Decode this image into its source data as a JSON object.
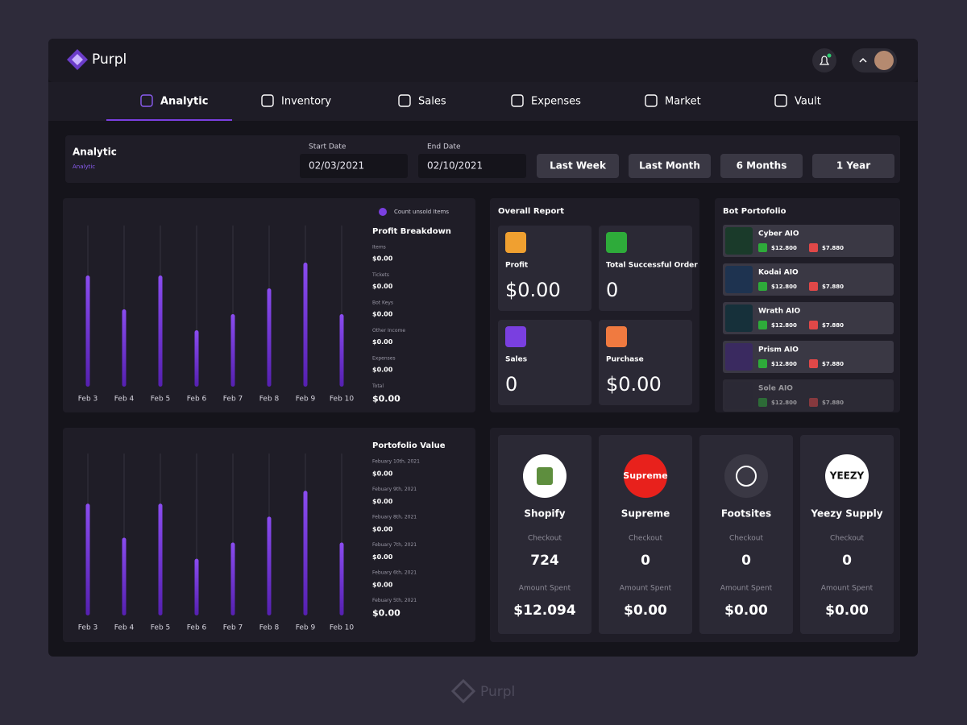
{
  "brand": "Purpl",
  "nav": [
    "Analytic",
    "Inventory",
    "Sales",
    "Expenses",
    "Market",
    "Vault"
  ],
  "filter": {
    "title": "Analytic",
    "breadcrumb": "Analytic",
    "start_label": "Start Date",
    "start_value": "02/03/2021",
    "end_label": "End Date",
    "end_value": "02/10/2021",
    "ranges": [
      "Last Week",
      "Last Month",
      "6 Months",
      "1 Year"
    ]
  },
  "profit_chart": {
    "type": "bar",
    "legend": "Count unsold Items",
    "color": "#7a3fe0",
    "categories": [
      "Feb 3",
      "Feb 4",
      "Feb 5",
      "Feb 6",
      "Feb 7",
      "Feb 8",
      "Feb 9",
      "Feb 10"
    ],
    "values": [
      69,
      48,
      69,
      35,
      45,
      61,
      77,
      45
    ],
    "ylim": [
      0,
      100
    ]
  },
  "profit_breakdown": {
    "title": "Profit Breakdown",
    "items": [
      {
        "label": "Items",
        "value": "$0.00"
      },
      {
        "label": "Tickets",
        "value": "$0.00"
      },
      {
        "label": "Bot Keys",
        "value": "$0.00"
      },
      {
        "label": "Other Income",
        "value": "$0.00"
      },
      {
        "label": "Expenses",
        "value": "$0.00"
      },
      {
        "label": "Total",
        "value": "$0.00"
      }
    ]
  },
  "overall_report": {
    "title": "Overall Report",
    "cards": [
      {
        "label": "Profit",
        "value": "$0.00"
      },
      {
        "label": "Total Successful Order",
        "value": "0"
      },
      {
        "label": "Sales",
        "value": "0"
      },
      {
        "label": "Purchase",
        "value": "$0.00"
      }
    ]
  },
  "bot_portfolio": {
    "title": "Bot Portofolio",
    "bots": [
      {
        "name": "Cyber AIO",
        "price_a": "$12.800",
        "price_b": "$7.880"
      },
      {
        "name": "Kodai AIO",
        "price_a": "$12.800",
        "price_b": "$7.880"
      },
      {
        "name": "Wrath AIO",
        "price_a": "$12.800",
        "price_b": "$7.880"
      },
      {
        "name": "Prism AIO",
        "price_a": "$12.800",
        "price_b": "$7.880"
      },
      {
        "name": "Sole AIO",
        "price_a": "$12.800",
        "price_b": "$7.880"
      }
    ]
  },
  "portfolio_chart": {
    "type": "bar",
    "color": "#7a3fe0",
    "categories": [
      "Feb 3",
      "Feb 4",
      "Feb 5",
      "Feb 6",
      "Feb 7",
      "Feb 8",
      "Feb 9",
      "Feb 10"
    ],
    "values": [
      69,
      48,
      69,
      35,
      45,
      61,
      77,
      45
    ],
    "ylim": [
      0,
      100
    ]
  },
  "portfolio_value": {
    "title": "Portofolio Value",
    "entries": [
      {
        "date": "Febuary 10th, 2021",
        "value": "$0.00"
      },
      {
        "date": "Febuary 9th, 2021",
        "value": "$0.00"
      },
      {
        "date": "Febuary 8th, 2021",
        "value": "$0.00"
      },
      {
        "date": "Febuary 7th, 2021",
        "value": "$0.00"
      },
      {
        "date": "Febuary 6th, 2021",
        "value": "$0.00"
      },
      {
        "date": "Febuary 5th, 2021",
        "value": "$0.00"
      }
    ]
  },
  "stores": [
    {
      "name": "Shopify",
      "checkout_label": "Checkout",
      "checkout": "724",
      "spent_label": "Amount Spent",
      "spent": "$12.094"
    },
    {
      "name": "Supreme",
      "logo": "Supreme",
      "checkout_label": "Checkout",
      "checkout": "0",
      "spent_label": "Amount Spent",
      "spent": "$0.00"
    },
    {
      "name": "Footsites",
      "checkout_label": "Checkout",
      "checkout": "0",
      "spent_label": "Amount Spent",
      "spent": "$0.00"
    },
    {
      "name": "Yeezy Supply",
      "logo": "YEEZY",
      "checkout_label": "Checkout",
      "checkout": "0",
      "spent_label": "Amount Spent",
      "spent": "$0.00"
    }
  ],
  "footer_brand": "Purpl"
}
